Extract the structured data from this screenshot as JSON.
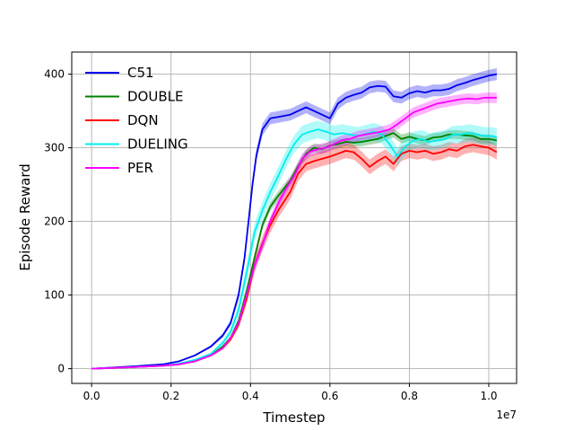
{
  "chart_data": {
    "type": "line",
    "title": "",
    "xlabel": "Timestep",
    "ylabel": "Episode Reward",
    "x_offset_label": "1e7",
    "xlim": [
      -0.05,
      1.07
    ],
    "ylim": [
      -20,
      430
    ],
    "x_ticks": [
      0.0,
      0.2,
      0.4,
      0.6,
      0.8,
      1.0
    ],
    "x_tick_labels": [
      "0.0",
      "0.2",
      "0.4",
      "0.6",
      "0.8",
      "1.0"
    ],
    "y_ticks": [
      0,
      100,
      200,
      300,
      400
    ],
    "y_tick_labels": [
      "0",
      "100",
      "200",
      "300",
      "400"
    ],
    "grid": true,
    "legend_position": "top-left",
    "series": [
      {
        "name": "C51",
        "color": "#0000ee",
        "band": 8,
        "points": [
          [
            0,
            0
          ],
          [
            0.1,
            3
          ],
          [
            0.18,
            6
          ],
          [
            0.22,
            10
          ],
          [
            0.26,
            18
          ],
          [
            0.3,
            30
          ],
          [
            0.33,
            45
          ],
          [
            0.35,
            62
          ],
          [
            0.37,
            100
          ],
          [
            0.385,
            150
          ],
          [
            0.395,
            200
          ],
          [
            0.405,
            250
          ],
          [
            0.415,
            290
          ],
          [
            0.43,
            325
          ],
          [
            0.45,
            340
          ],
          [
            0.47,
            342
          ],
          [
            0.5,
            345
          ],
          [
            0.52,
            350
          ],
          [
            0.54,
            355
          ],
          [
            0.56,
            350
          ],
          [
            0.58,
            345
          ],
          [
            0.6,
            340
          ],
          [
            0.62,
            360
          ],
          [
            0.64,
            368
          ],
          [
            0.66,
            372
          ],
          [
            0.68,
            375
          ],
          [
            0.7,
            382
          ],
          [
            0.72,
            384
          ],
          [
            0.74,
            383
          ],
          [
            0.76,
            370
          ],
          [
            0.78,
            368
          ],
          [
            0.8,
            374
          ],
          [
            0.82,
            377
          ],
          [
            0.84,
            375
          ],
          [
            0.86,
            378
          ],
          [
            0.88,
            378
          ],
          [
            0.9,
            380
          ],
          [
            0.92,
            385
          ],
          [
            0.94,
            388
          ],
          [
            0.96,
            392
          ],
          [
            0.98,
            395
          ],
          [
            1.0,
            398
          ],
          [
            1.02,
            400
          ]
        ]
      },
      {
        "name": "DOUBLE",
        "color": "#008000",
        "band": 6,
        "points": [
          [
            0,
            0
          ],
          [
            0.1,
            2
          ],
          [
            0.18,
            4
          ],
          [
            0.22,
            6
          ],
          [
            0.26,
            10
          ],
          [
            0.3,
            18
          ],
          [
            0.33,
            30
          ],
          [
            0.35,
            42
          ],
          [
            0.37,
            65
          ],
          [
            0.39,
            105
          ],
          [
            0.41,
            150
          ],
          [
            0.43,
            195
          ],
          [
            0.45,
            220
          ],
          [
            0.47,
            235
          ],
          [
            0.5,
            255
          ],
          [
            0.52,
            275
          ],
          [
            0.54,
            292
          ],
          [
            0.56,
            300
          ],
          [
            0.58,
            298
          ],
          [
            0.6,
            303
          ],
          [
            0.62,
            305
          ],
          [
            0.64,
            308
          ],
          [
            0.66,
            307
          ],
          [
            0.68,
            308
          ],
          [
            0.7,
            310
          ],
          [
            0.72,
            312
          ],
          [
            0.74,
            316
          ],
          [
            0.76,
            320
          ],
          [
            0.78,
            312
          ],
          [
            0.8,
            315
          ],
          [
            0.82,
            312
          ],
          [
            0.84,
            310
          ],
          [
            0.86,
            314
          ],
          [
            0.88,
            315
          ],
          [
            0.9,
            318
          ],
          [
            0.92,
            318
          ],
          [
            0.94,
            317
          ],
          [
            0.96,
            316
          ],
          [
            0.98,
            312
          ],
          [
            1.0,
            312
          ],
          [
            1.02,
            310
          ]
        ]
      },
      {
        "name": "DQN",
        "color": "#ff0000",
        "band": 10,
        "points": [
          [
            0,
            0
          ],
          [
            0.1,
            2
          ],
          [
            0.18,
            4
          ],
          [
            0.22,
            6
          ],
          [
            0.26,
            10
          ],
          [
            0.3,
            18
          ],
          [
            0.33,
            28
          ],
          [
            0.35,
            40
          ],
          [
            0.37,
            60
          ],
          [
            0.39,
            95
          ],
          [
            0.41,
            140
          ],
          [
            0.43,
            170
          ],
          [
            0.45,
            195
          ],
          [
            0.47,
            215
          ],
          [
            0.5,
            240
          ],
          [
            0.52,
            265
          ],
          [
            0.54,
            278
          ],
          [
            0.56,
            282
          ],
          [
            0.58,
            285
          ],
          [
            0.6,
            288
          ],
          [
            0.62,
            292
          ],
          [
            0.64,
            296
          ],
          [
            0.66,
            294
          ],
          [
            0.68,
            285
          ],
          [
            0.7,
            274
          ],
          [
            0.72,
            282
          ],
          [
            0.74,
            288
          ],
          [
            0.76,
            278
          ],
          [
            0.78,
            292
          ],
          [
            0.8,
            296
          ],
          [
            0.82,
            294
          ],
          [
            0.84,
            296
          ],
          [
            0.86,
            292
          ],
          [
            0.88,
            294
          ],
          [
            0.9,
            298
          ],
          [
            0.92,
            296
          ],
          [
            0.94,
            302
          ],
          [
            0.96,
            304
          ],
          [
            0.98,
            302
          ],
          [
            1.0,
            300
          ],
          [
            1.02,
            294
          ]
        ]
      },
      {
        "name": "DUELING",
        "color": "#00eeee",
        "band": 12,
        "points": [
          [
            0,
            0
          ],
          [
            0.1,
            2
          ],
          [
            0.18,
            4
          ],
          [
            0.22,
            7
          ],
          [
            0.26,
            12
          ],
          [
            0.3,
            20
          ],
          [
            0.33,
            35
          ],
          [
            0.35,
            50
          ],
          [
            0.37,
            80
          ],
          [
            0.39,
            130
          ],
          [
            0.41,
            185
          ],
          [
            0.43,
            215
          ],
          [
            0.45,
            240
          ],
          [
            0.47,
            262
          ],
          [
            0.49,
            285
          ],
          [
            0.51,
            305
          ],
          [
            0.53,
            318
          ],
          [
            0.55,
            322
          ],
          [
            0.57,
            325
          ],
          [
            0.59,
            322
          ],
          [
            0.61,
            318
          ],
          [
            0.63,
            320
          ],
          [
            0.65,
            318
          ],
          [
            0.67,
            316
          ],
          [
            0.69,
            319
          ],
          [
            0.71,
            322
          ],
          [
            0.73,
            318
          ],
          [
            0.75,
            305
          ],
          [
            0.77,
            288
          ],
          [
            0.79,
            302
          ],
          [
            0.81,
            310
          ],
          [
            0.83,
            312
          ],
          [
            0.85,
            308
          ],
          [
            0.87,
            310
          ],
          [
            0.89,
            312
          ],
          [
            0.91,
            318
          ],
          [
            0.93,
            318
          ],
          [
            0.95,
            320
          ],
          [
            0.97,
            318
          ],
          [
            0.99,
            316
          ],
          [
            1.01,
            316
          ],
          [
            1.02,
            314
          ]
        ]
      },
      {
        "name": "PER",
        "color": "#ff00ff",
        "band": 7,
        "points": [
          [
            0,
            0
          ],
          [
            0.1,
            2
          ],
          [
            0.18,
            4
          ],
          [
            0.22,
            6
          ],
          [
            0.26,
            10
          ],
          [
            0.3,
            18
          ],
          [
            0.33,
            28
          ],
          [
            0.35,
            42
          ],
          [
            0.37,
            62
          ],
          [
            0.39,
            100
          ],
          [
            0.41,
            140
          ],
          [
            0.43,
            168
          ],
          [
            0.45,
            200
          ],
          [
            0.47,
            225
          ],
          [
            0.49,
            245
          ],
          [
            0.51,
            262
          ],
          [
            0.53,
            285
          ],
          [
            0.55,
            295
          ],
          [
            0.57,
            298
          ],
          [
            0.59,
            300
          ],
          [
            0.61,
            305
          ],
          [
            0.63,
            310
          ],
          [
            0.65,
            312
          ],
          [
            0.67,
            316
          ],
          [
            0.69,
            318
          ],
          [
            0.71,
            320
          ],
          [
            0.73,
            322
          ],
          [
            0.75,
            325
          ],
          [
            0.77,
            332
          ],
          [
            0.79,
            340
          ],
          [
            0.81,
            348
          ],
          [
            0.83,
            352
          ],
          [
            0.85,
            356
          ],
          [
            0.87,
            360
          ],
          [
            0.89,
            362
          ],
          [
            0.91,
            364
          ],
          [
            0.93,
            366
          ],
          [
            0.95,
            367
          ],
          [
            0.97,
            366
          ],
          [
            0.99,
            368
          ],
          [
            1.01,
            368
          ],
          [
            1.02,
            368
          ]
        ]
      }
    ]
  }
}
